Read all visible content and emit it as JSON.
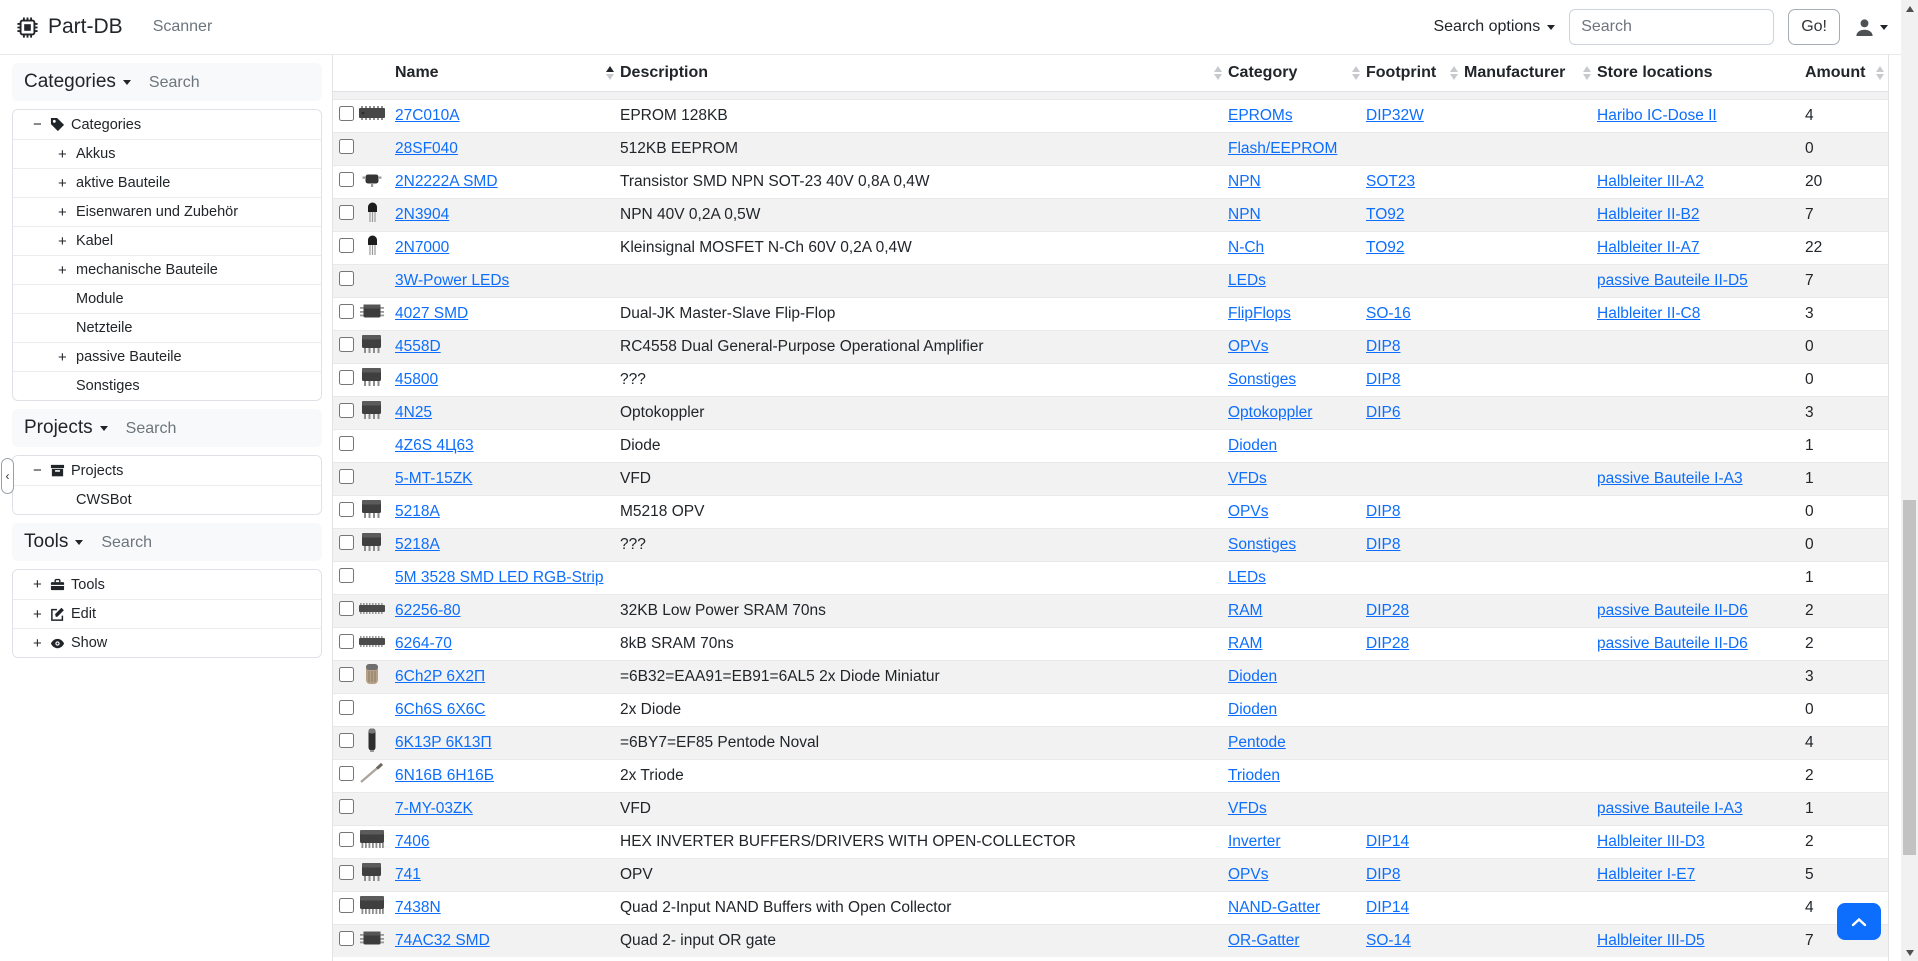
{
  "navbar": {
    "brand": "Part-DB",
    "scanner": "Scanner",
    "search_options_label": "Search options",
    "search_placeholder": "Search",
    "go_label": "Go!",
    "brand_icon": "cpu-icon",
    "user_icon": "person-icon"
  },
  "sidebar": {
    "collapse_handle": "‹",
    "panels": [
      {
        "title": "Categories",
        "search_placeholder": "Search",
        "tree": [
          {
            "label": "Categories",
            "toggle": "minus",
            "icon": "tag-icon",
            "level": 0
          },
          {
            "label": "Akkus",
            "toggle": "plus",
            "icon": null,
            "level": 1
          },
          {
            "label": "aktive Bauteile",
            "toggle": "plus",
            "icon": null,
            "level": 1
          },
          {
            "label": "Eisenwaren und Zubehör",
            "toggle": "plus",
            "icon": null,
            "level": 1
          },
          {
            "label": "Kabel",
            "toggle": "plus",
            "icon": null,
            "level": 1
          },
          {
            "label": "mechanische Bauteile",
            "toggle": "plus",
            "icon": null,
            "level": 1
          },
          {
            "label": "Module",
            "toggle": "none",
            "icon": null,
            "level": 1
          },
          {
            "label": "Netzteile",
            "toggle": "none",
            "icon": null,
            "level": 1
          },
          {
            "label": "passive Bauteile",
            "toggle": "plus",
            "icon": null,
            "level": 1
          },
          {
            "label": "Sonstiges",
            "toggle": "none",
            "icon": null,
            "level": 1
          }
        ]
      },
      {
        "title": "Projects",
        "search_placeholder": "Search",
        "tree": [
          {
            "label": "Projects",
            "toggle": "minus",
            "icon": "archive-icon",
            "level": 0
          },
          {
            "label": "CWSBot",
            "toggle": "none",
            "icon": null,
            "level": 1
          }
        ]
      },
      {
        "title": "Tools",
        "search_placeholder": "Search",
        "tree": [
          {
            "label": "Tools",
            "toggle": "plus",
            "icon": "toolbox-icon",
            "level": 0
          },
          {
            "label": "Edit",
            "toggle": "plus",
            "icon": "edit-icon",
            "level": 0
          },
          {
            "label": "Show",
            "toggle": "plus",
            "icon": "eye-icon",
            "level": 0
          }
        ]
      }
    ]
  },
  "table": {
    "columns": [
      {
        "label": "Name",
        "sort": "asc"
      },
      {
        "label": "Description",
        "sort": "none"
      },
      {
        "label": "Category",
        "sort": "none"
      },
      {
        "label": "Footprint",
        "sort": "none"
      },
      {
        "label": "Manufacturer",
        "sort": "none"
      },
      {
        "label": "Store locations",
        "sort": null
      },
      {
        "label": "Amount",
        "sort": "none"
      }
    ],
    "rows": [
      {
        "thumb": "ic-flat",
        "name": "27C010A",
        "description": "EPROM 128KB",
        "category": "EPROMs",
        "footprint": "DIP32W",
        "manufacturer": "",
        "store_location": "Haribo IC-Dose II",
        "amount": "4"
      },
      {
        "thumb": null,
        "name": "28SF040",
        "description": "512KB EEPROM",
        "category": "Flash/EEPROM",
        "footprint": "",
        "manufacturer": "",
        "store_location": "",
        "amount": "0"
      },
      {
        "thumb": "sot23",
        "name": "2N2222A SMD",
        "description": "Transistor SMD NPN SOT-23 40V 0,8A 0,4W",
        "category": "NPN",
        "footprint": "SOT23",
        "manufacturer": "",
        "store_location": "Halbleiter III-A2",
        "amount": "20"
      },
      {
        "thumb": "to92",
        "name": "2N3904",
        "description": "NPN 40V 0,2A 0,5W",
        "category": "NPN",
        "footprint": "TO92",
        "manufacturer": "",
        "store_location": "Halbleiter II-B2",
        "amount": "7"
      },
      {
        "thumb": "to92",
        "name": "2N7000",
        "description": "Kleinsignal MOSFET N-Ch 60V 0,2A 0,4W",
        "category": "N-Ch",
        "footprint": "TO92",
        "manufacturer": "",
        "store_location": "Halbleiter II-A7",
        "amount": "22"
      },
      {
        "thumb": null,
        "name": "3W-Power LEDs",
        "description": "",
        "category": "LEDs",
        "footprint": "",
        "manufacturer": "",
        "store_location": "passive Bauteile II-D5",
        "amount": "7"
      },
      {
        "thumb": "so",
        "name": "4027 SMD",
        "description": "Dual-JK Master-Slave Flip-Flop",
        "category": "FlipFlops",
        "footprint": "SO-16",
        "manufacturer": "",
        "store_location": "Halbleiter II-C8",
        "amount": "3"
      },
      {
        "thumb": "dip",
        "name": "4558D",
        "description": "RC4558 Dual General-Purpose Operational Amplifier",
        "category": "OPVs",
        "footprint": "DIP8",
        "manufacturer": "",
        "store_location": "",
        "amount": "0"
      },
      {
        "thumb": "dip",
        "name": "45800",
        "description": "???",
        "category": "Sonstiges",
        "footprint": "DIP8",
        "manufacturer": "",
        "store_location": "",
        "amount": "0"
      },
      {
        "thumb": "dip",
        "name": "4N25",
        "description": "Optokoppler",
        "category": "Optokoppler",
        "footprint": "DIP6",
        "manufacturer": "",
        "store_location": "",
        "amount": "3"
      },
      {
        "thumb": null,
        "name": "4Z6S 4Ц63",
        "description": "Diode",
        "category": "Dioden",
        "footprint": "",
        "manufacturer": "",
        "store_location": "",
        "amount": "1"
      },
      {
        "thumb": null,
        "name": "5-MT-15ZK",
        "description": "VFD",
        "category": "VFDs",
        "footprint": "",
        "manufacturer": "",
        "store_location": "passive Bauteile I-A3",
        "amount": "1"
      },
      {
        "thumb": "dip",
        "name": "5218A",
        "description": "M5218 OPV",
        "category": "OPVs",
        "footprint": "DIP8",
        "manufacturer": "",
        "store_location": "",
        "amount": "0"
      },
      {
        "thumb": "dip",
        "name": "5218A",
        "description": "???",
        "category": "Sonstiges",
        "footprint": "DIP8",
        "manufacturer": "",
        "store_location": "",
        "amount": "0"
      },
      {
        "thumb": null,
        "name": "5M 3528 SMD LED RGB-Strip",
        "description": "",
        "category": "LEDs",
        "footprint": "",
        "manufacturer": "",
        "store_location": "",
        "amount": "1"
      },
      {
        "thumb": "ic-long",
        "name": "62256-80",
        "description": "32KB Low Power SRAM 70ns",
        "category": "RAM",
        "footprint": "DIP28",
        "manufacturer": "",
        "store_location": "passive Bauteile II-D6",
        "amount": "2"
      },
      {
        "thumb": "ic-long",
        "name": "6264-70",
        "description": "8kB SRAM 70ns",
        "category": "RAM",
        "footprint": "DIP28",
        "manufacturer": "",
        "store_location": "passive Bauteile II-D6",
        "amount": "2"
      },
      {
        "thumb": "tube",
        "name": "6Ch2P 6Х2П",
        "description": "=6B32=EAA91=EB91=6AL5 2x Diode Miniatur",
        "category": "Dioden",
        "footprint": "",
        "manufacturer": "",
        "store_location": "",
        "amount": "3"
      },
      {
        "thumb": null,
        "name": "6Ch6S 6X6C",
        "description": "2x Diode",
        "category": "Dioden",
        "footprint": "",
        "manufacturer": "",
        "store_location": "",
        "amount": "0"
      },
      {
        "thumb": "tube-tall",
        "name": "6K13P 6К13П",
        "description": "=6BY7=EF85 Pentode Noval",
        "category": "Pentode",
        "footprint": "",
        "manufacturer": "",
        "store_location": "",
        "amount": "4"
      },
      {
        "thumb": "wire",
        "name": "6N16B 6Н16Б",
        "description": "2x Triode",
        "category": "Trioden",
        "footprint": "",
        "manufacturer": "",
        "store_location": "",
        "amount": "2"
      },
      {
        "thumb": null,
        "name": "7-MY-03ZK",
        "description": "VFD",
        "category": "VFDs",
        "footprint": "",
        "manufacturer": "",
        "store_location": "passive Bauteile I-A3",
        "amount": "1"
      },
      {
        "thumb": "dip14",
        "name": "7406",
        "description": "HEX INVERTER BUFFERS/DRIVERS WITH OPEN-COLLECTOR",
        "category": "Inverter",
        "footprint": "DIP14",
        "manufacturer": "",
        "store_location": "Halbleiter III-D3",
        "amount": "2"
      },
      {
        "thumb": "dip",
        "name": "741",
        "description": "OPV",
        "category": "OPVs",
        "footprint": "DIP8",
        "manufacturer": "",
        "store_location": "Halbleiter I-E7",
        "amount": "5"
      },
      {
        "thumb": "dip14",
        "name": "7438N",
        "description": "Quad 2-Input NAND Buffers with Open Collector",
        "category": "NAND-Gatter",
        "footprint": "DIP14",
        "manufacturer": "",
        "store_location": "",
        "amount": "4"
      },
      {
        "thumb": "so",
        "name": "74AC32 SMD",
        "description": "Quad 2- input OR gate",
        "category": "OR-Gatter",
        "footprint": "SO-14",
        "manufacturer": "",
        "store_location": "Halbleiter III-D5",
        "amount": "7"
      }
    ]
  }
}
